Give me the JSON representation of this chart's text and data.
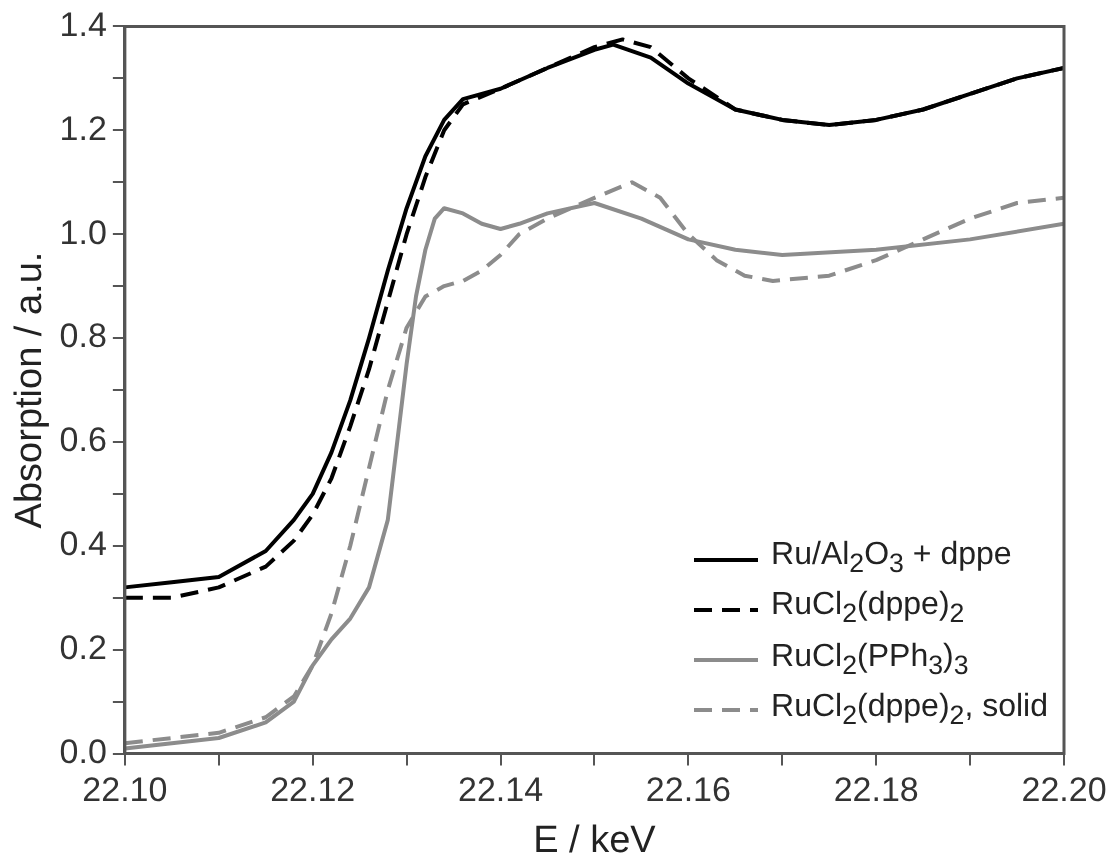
{
  "chart_data": {
    "type": "line",
    "xlabel": "E / keV",
    "ylabel": "Absorption / a.u.",
    "xlim": [
      22.1,
      22.2
    ],
    "ylim": [
      0,
      1.4
    ],
    "xticks": [
      {
        "value": 22.1,
        "label": "22.10"
      },
      {
        "value": 22.11,
        "label": null
      },
      {
        "value": 22.12,
        "label": "22.12"
      },
      {
        "value": 22.13,
        "label": null
      },
      {
        "value": 22.14,
        "label": "22.14"
      },
      {
        "value": 22.15,
        "label": null
      },
      {
        "value": 22.16,
        "label": "22.16"
      },
      {
        "value": 22.17,
        "label": null
      },
      {
        "value": 22.18,
        "label": "22.18"
      },
      {
        "value": 22.19,
        "label": null
      },
      {
        "value": 22.2,
        "label": "22.20"
      }
    ],
    "yticks": [
      {
        "value": 0,
        "label": "0.0"
      },
      {
        "value": 0.1,
        "label": null
      },
      {
        "value": 0.2,
        "label": "0.2"
      },
      {
        "value": 0.3,
        "label": null
      },
      {
        "value": 0.4,
        "label": "0.4"
      },
      {
        "value": 0.5,
        "label": null
      },
      {
        "value": 0.6,
        "label": "0.6"
      },
      {
        "value": 0.7,
        "label": null
      },
      {
        "value": 0.8,
        "label": "0.8"
      },
      {
        "value": 0.9,
        "label": null
      },
      {
        "value": 1.0,
        "label": "1.0"
      },
      {
        "value": 1.1,
        "label": null
      },
      {
        "value": 1.2,
        "label": "1.2"
      },
      {
        "value": 1.3,
        "label": null
      },
      {
        "value": 1.4,
        "label": "1.4"
      }
    ],
    "legend": "bottom right",
    "marker": "none",
    "series": [
      {
        "name": "Ru/Al$_{2}$O$_{3}$ + dppe",
        "color": "#000000",
        "line_style": "solid",
        "x": [
          22.1,
          22.105,
          22.11,
          22.115,
          22.118,
          22.12,
          22.122,
          22.124,
          22.126,
          22.128,
          22.13,
          22.132,
          22.134,
          22.136,
          22.14,
          22.145,
          22.15,
          22.152,
          22.156,
          22.16,
          22.165,
          22.17,
          22.175,
          22.18,
          22.185,
          22.19,
          22.195,
          22.2
        ],
        "values": [
          0.32,
          0.33,
          0.34,
          0.39,
          0.45,
          0.5,
          0.58,
          0.68,
          0.8,
          0.93,
          1.05,
          1.15,
          1.22,
          1.26,
          1.28,
          1.32,
          1.355,
          1.365,
          1.34,
          1.29,
          1.24,
          1.22,
          1.21,
          1.22,
          1.24,
          1.27,
          1.3,
          1.32
        ]
      },
      {
        "name": "RuCl$_{2}$(dppe)$_{2}$",
        "color": "#000000",
        "line_style": "dashed",
        "x": [
          22.1,
          22.105,
          22.11,
          22.115,
          22.118,
          22.12,
          22.122,
          22.124,
          22.126,
          22.128,
          22.13,
          22.132,
          22.134,
          22.136,
          22.14,
          22.145,
          22.15,
          22.153,
          22.156,
          22.16,
          22.165,
          22.17,
          22.175,
          22.18,
          22.185,
          22.19,
          22.195,
          22.2
        ],
        "values": [
          0.3,
          0.3,
          0.32,
          0.36,
          0.41,
          0.46,
          0.53,
          0.63,
          0.74,
          0.87,
          1.0,
          1.11,
          1.2,
          1.25,
          1.28,
          1.32,
          1.36,
          1.375,
          1.36,
          1.3,
          1.24,
          1.22,
          1.21,
          1.22,
          1.24,
          1.27,
          1.3,
          1.32
        ]
      },
      {
        "name": "RuCl$_{2}$(PPh$_{3}$)$_{3}$",
        "color": "#8c8c8c",
        "line_style": "solid",
        "x": [
          22.1,
          22.11,
          22.115,
          22.118,
          22.12,
          22.122,
          22.124,
          22.126,
          22.128,
          22.129,
          22.13,
          22.131,
          22.132,
          22.133,
          22.134,
          22.136,
          22.138,
          22.14,
          22.142,
          22.145,
          22.15,
          22.155,
          22.16,
          22.165,
          22.17,
          22.18,
          22.19,
          22.2
        ],
        "values": [
          0.01,
          0.03,
          0.06,
          0.1,
          0.17,
          0.22,
          0.26,
          0.32,
          0.45,
          0.6,
          0.75,
          0.88,
          0.97,
          1.03,
          1.05,
          1.04,
          1.02,
          1.01,
          1.02,
          1.04,
          1.06,
          1.03,
          0.99,
          0.97,
          0.96,
          0.97,
          0.99,
          1.02
        ]
      },
      {
        "name": "RuCl$_{2}$(dppe)$_{2}$, solid",
        "color": "#8c8c8c",
        "line_style": "dashed",
        "x": [
          22.1,
          22.11,
          22.115,
          22.118,
          22.12,
          22.122,
          22.124,
          22.126,
          22.128,
          22.13,
          22.132,
          22.134,
          22.136,
          22.138,
          22.14,
          22.142,
          22.145,
          22.15,
          22.154,
          22.157,
          22.16,
          22.163,
          22.166,
          22.169,
          22.175,
          22.18,
          22.185,
          22.19,
          22.195,
          22.2
        ],
        "values": [
          0.02,
          0.04,
          0.07,
          0.11,
          0.17,
          0.27,
          0.4,
          0.55,
          0.7,
          0.82,
          0.88,
          0.9,
          0.91,
          0.93,
          0.96,
          1.0,
          1.03,
          1.07,
          1.1,
          1.07,
          1.0,
          0.95,
          0.92,
          0.91,
          0.92,
          0.95,
          0.99,
          1.03,
          1.06,
          1.07
        ]
      }
    ]
  }
}
